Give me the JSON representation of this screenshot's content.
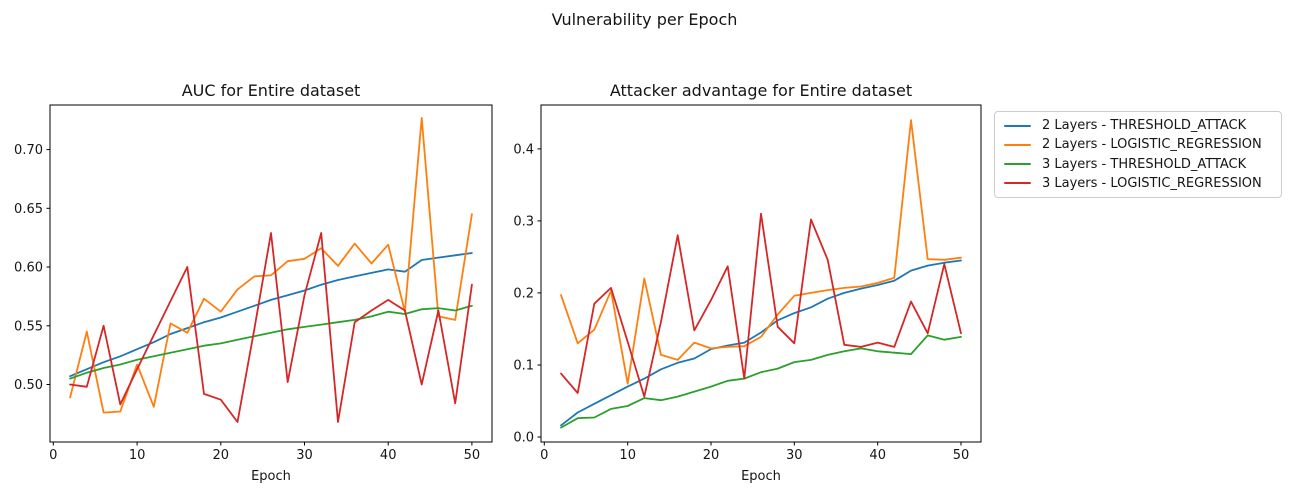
{
  "figure": {
    "title": "Vulnerability per Epoch"
  },
  "palette": {
    "blue": "#1f77b4",
    "orange": "#ff7f0e",
    "green": "#2ca02c",
    "red": "#d62728"
  },
  "legend": {
    "items": [
      {
        "label": "2 Layers - THRESHOLD_ATTACK",
        "color": "#1f77b4"
      },
      {
        "label": "2 Layers - LOGISTIC_REGRESSION",
        "color": "#ff7f0e"
      },
      {
        "label": "3 Layers - THRESHOLD_ATTACK",
        "color": "#2ca02c"
      },
      {
        "label": "3 Layers - LOGISTIC_REGRESSION",
        "color": "#d62728"
      }
    ]
  },
  "chart_data": [
    {
      "type": "line",
      "title": "AUC for Entire dataset",
      "xlabel": "Epoch",
      "ylabel": "",
      "grid": false,
      "legend_position": "outside-right-of-second-plot",
      "x": [
        2,
        4,
        6,
        8,
        10,
        12,
        14,
        16,
        18,
        20,
        22,
        24,
        26,
        28,
        30,
        32,
        34,
        36,
        38,
        40,
        42,
        44,
        46,
        48,
        50
      ],
      "xlim": [
        -0.4,
        52.4
      ],
      "ylim": [
        0.451,
        0.738
      ],
      "xtick_values": [
        0,
        10,
        20,
        30,
        40,
        50
      ],
      "xtick_labels": [
        "0",
        "10",
        "20",
        "30",
        "40",
        "50"
      ],
      "ytick_values": [
        0.5,
        0.55,
        0.6,
        0.65,
        0.7
      ],
      "ytick_labels": [
        "0.50",
        "0.55",
        "0.60",
        "0.65",
        "0.70"
      ],
      "series": [
        {
          "name": "2 Layers - THRESHOLD_ATTACK",
          "color": "#1f77b4",
          "values": [
            0.507,
            0.513,
            0.519,
            0.524,
            0.53,
            0.536,
            0.543,
            0.548,
            0.553,
            0.557,
            0.562,
            0.567,
            0.572,
            0.576,
            0.58,
            0.585,
            0.589,
            0.592,
            0.595,
            0.598,
            0.596,
            0.606,
            0.608,
            0.61,
            0.612
          ]
        },
        {
          "name": "2 Layers - LOGISTIC_REGRESSION",
          "color": "#ff7f0e",
          "values": [
            0.489,
            0.545,
            0.476,
            0.477,
            0.517,
            0.481,
            0.552,
            0.544,
            0.573,
            0.562,
            0.581,
            0.592,
            0.593,
            0.605,
            0.607,
            0.616,
            0.601,
            0.62,
            0.603,
            0.619,
            0.562,
            0.727,
            0.558,
            0.555,
            0.645
          ]
        },
        {
          "name": "3 Layers - THRESHOLD_ATTACK",
          "color": "#2ca02c",
          "values": [
            0.505,
            0.51,
            0.514,
            0.517,
            0.521,
            0.524,
            0.527,
            0.53,
            0.533,
            0.535,
            0.538,
            0.541,
            0.544,
            0.547,
            0.549,
            0.551,
            0.553,
            0.555,
            0.558,
            0.562,
            0.56,
            0.564,
            0.565,
            0.563,
            0.567
          ]
        },
        {
          "name": "3 Layers - LOGISTIC_REGRESSION",
          "color": "#d62728",
          "values": [
            0.5,
            0.498,
            0.55,
            0.483,
            0.513,
            0.542,
            0.571,
            0.6,
            0.492,
            0.487,
            0.468,
            0.547,
            0.629,
            0.502,
            0.576,
            0.629,
            0.468,
            0.553,
            0.563,
            0.572,
            0.563,
            0.5,
            0.563,
            0.484,
            0.585
          ]
        }
      ]
    },
    {
      "type": "line",
      "title": "Attacker advantage for Entire dataset",
      "xlabel": "Epoch",
      "ylabel": "",
      "grid": false,
      "x": [
        2,
        4,
        6,
        8,
        10,
        12,
        14,
        16,
        18,
        20,
        22,
        24,
        26,
        28,
        30,
        32,
        34,
        36,
        38,
        40,
        42,
        44,
        46,
        48,
        50
      ],
      "xlim": [
        -0.4,
        52.4
      ],
      "ylim": [
        -0.007,
        0.461
      ],
      "xtick_values": [
        0,
        10,
        20,
        30,
        40,
        50
      ],
      "xtick_labels": [
        "0",
        "10",
        "20",
        "30",
        "40",
        "50"
      ],
      "ytick_values": [
        0.0,
        0.1,
        0.2,
        0.3,
        0.4
      ],
      "ytick_labels": [
        "0.0",
        "0.1",
        "0.2",
        "0.3",
        "0.4"
      ],
      "series": [
        {
          "name": "2 Layers - THRESHOLD_ATTACK",
          "color": "#1f77b4",
          "values": [
            0.016,
            0.034,
            0.046,
            0.058,
            0.07,
            0.081,
            0.094,
            0.103,
            0.109,
            0.122,
            0.127,
            0.131,
            0.145,
            0.162,
            0.172,
            0.18,
            0.192,
            0.2,
            0.206,
            0.211,
            0.217,
            0.231,
            0.238,
            0.242,
            0.245
          ]
        },
        {
          "name": "2 Layers - LOGISTIC_REGRESSION",
          "color": "#ff7f0e",
          "values": [
            0.197,
            0.13,
            0.149,
            0.203,
            0.074,
            0.22,
            0.114,
            0.107,
            0.131,
            0.123,
            0.125,
            0.126,
            0.139,
            0.17,
            0.196,
            0.2,
            0.204,
            0.207,
            0.209,
            0.214,
            0.221,
            0.44,
            0.247,
            0.246,
            0.249
          ]
        },
        {
          "name": "3 Layers - THRESHOLD_ATTACK",
          "color": "#2ca02c",
          "values": [
            0.013,
            0.026,
            0.027,
            0.039,
            0.043,
            0.054,
            0.051,
            0.056,
            0.063,
            0.07,
            0.078,
            0.081,
            0.09,
            0.095,
            0.104,
            0.107,
            0.114,
            0.119,
            0.123,
            0.119,
            0.117,
            0.115,
            0.141,
            0.135,
            0.139
          ]
        },
        {
          "name": "3 Layers - LOGISTIC_REGRESSION",
          "color": "#d62728",
          "values": [
            0.088,
            0.061,
            0.185,
            0.207,
            0.132,
            0.056,
            0.16,
            0.28,
            0.148,
            0.19,
            0.237,
            0.081,
            0.31,
            0.153,
            0.13,
            0.302,
            0.246,
            0.128,
            0.125,
            0.131,
            0.125,
            0.188,
            0.144,
            0.24,
            0.144
          ]
        }
      ]
    }
  ]
}
